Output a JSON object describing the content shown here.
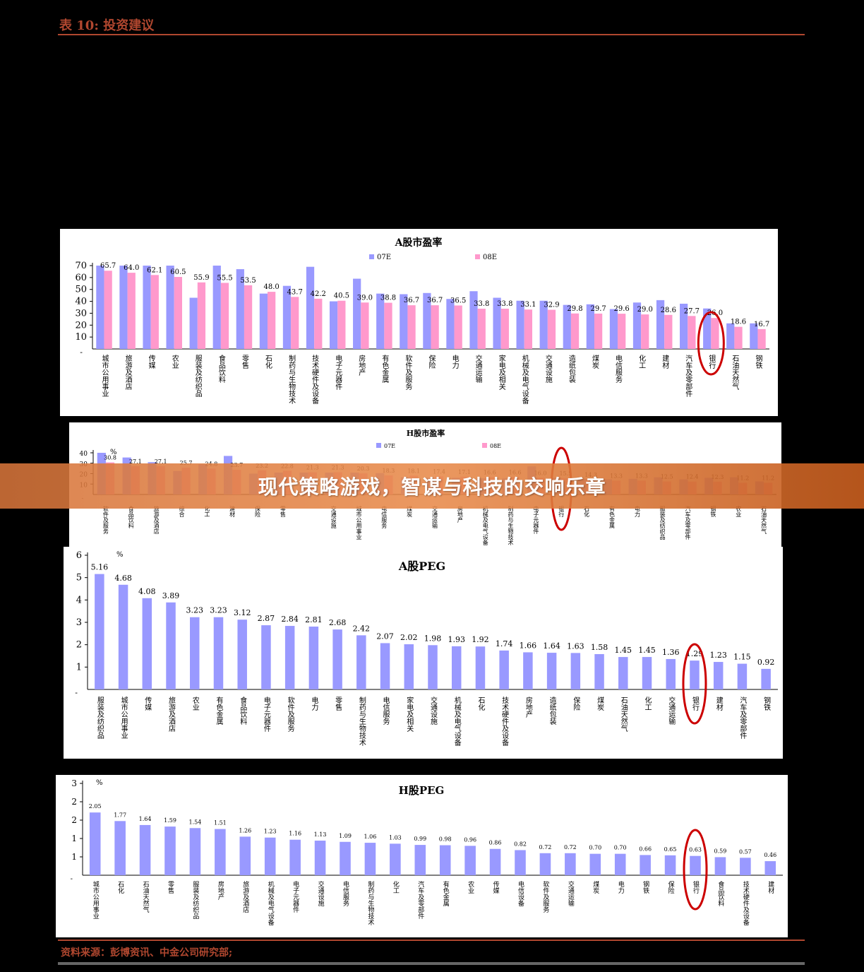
{
  "header": {
    "title": "表 10: 投资建议"
  },
  "footer": {
    "source": "资料来源：彭博资讯、中金公司研究部;"
  },
  "banner": {
    "title": "现代策略游戏，智谋与科技的交响乐章"
  },
  "colors": {
    "series_07E": "#9999ff",
    "series_08E": "#ff99cc",
    "peg_bar": "#9999ff",
    "highlight_circle": "#cc0000",
    "accent": "#b0472f"
  },
  "chart_data": [
    {
      "id": "a_pe",
      "type": "bar",
      "title": "A股市盈率",
      "legend": [
        "07E",
        "08E"
      ],
      "legend_position": "top-center",
      "ylim": [
        0,
        70
      ],
      "yticks": [
        "10",
        "20",
        "30",
        "40",
        "50",
        "60",
        "70"
      ],
      "highlight": "银行",
      "categories": [
        "城市公用事业",
        "旅游及酒店",
        "传媒",
        "农业",
        "服装及纺织品",
        "食品饮料",
        "零售",
        "石化",
        "制药与生物技术",
        "技术硬件及设备",
        "电子元器件",
        "房地产",
        "有色金属",
        "软件及服务",
        "保险",
        "电力",
        "交通运输",
        "家电及相关",
        "机械及电气设备",
        "交通设施",
        "造纸包装",
        "煤炭",
        "电信服务",
        "化工",
        "建材",
        "汽车及零部件",
        "银行",
        "石油天然气",
        "钢铁"
      ],
      "series": [
        {
          "name": "07E",
          "values": [
            70.5,
            70.5,
            70,
            70,
            43,
            71,
            67,
            46.5,
            53,
            69,
            40,
            59,
            46.5,
            46,
            47,
            42,
            48.5,
            43,
            40.5,
            40.5,
            37,
            37.5,
            33.5,
            39,
            41,
            38,
            34,
            21.5,
            21.5
          ]
        },
        {
          "name": "08E",
          "values": [
            65.7,
            64.0,
            62.1,
            60.5,
            55.9,
            55.5,
            53.5,
            48.0,
            43.7,
            42.2,
            40.5,
            39.0,
            38.8,
            36.7,
            36.7,
            36.5,
            33.8,
            33.8,
            33.1,
            32.9,
            29.8,
            29.7,
            29.6,
            29.0,
            28.6,
            27.7,
            26.0,
            18.6,
            16.7
          ]
        }
      ],
      "labels": [
        "65.7",
        "64.0",
        "62.1",
        "60.5",
        "55.9",
        "55.5",
        "53.5",
        "48.0",
        "43.7",
        "42.2",
        "40.5",
        "39.0",
        "38.8",
        "36.7",
        "36.7",
        "36.5",
        "33.8",
        "33.8",
        "33.1",
        "32.9",
        "29.8",
        "29.7",
        "29.6",
        "29.0",
        "28.6",
        "27.7",
        "26.0",
        "18.6",
        "16.7"
      ]
    },
    {
      "id": "h_pe",
      "type": "bar",
      "title": "H股市盈率",
      "unit": "%",
      "legend": [
        "07E",
        "08E"
      ],
      "legend_position": "top-center",
      "ylim": [
        0,
        40
      ],
      "yticks": [
        "10",
        "20",
        "30",
        "40"
      ],
      "highlight": "银行",
      "categories": [
        "软件及服务",
        "食品饮料",
        "旅游及酒店",
        "综合",
        "化工",
        "建材",
        "保险",
        "零售",
        "",
        "交通设施",
        "城市公用事业",
        "电信服务",
        "煤炭",
        "交通运输",
        "房地产",
        "机械及电气设备",
        "制药与生物技术",
        "电子元器件",
        "银行",
        "石化",
        "有色金属",
        "电力",
        "服装及纺织品",
        "汽车及零部件",
        "钢铁",
        "农业",
        "石油天然气"
      ],
      "series": [
        {
          "name": "07E",
          "values": [
            40.5,
            35.5,
            31,
            22.5,
            29,
            37,
            20,
            21,
            21,
            21,
            21,
            20.5,
            16.5,
            16,
            16,
            15.5,
            15.5,
            27,
            16,
            15,
            14.5,
            15,
            16.5,
            14.5,
            16,
            16.5,
            12.5
          ]
        },
        {
          "name": "08E",
          "values": [
            30.8,
            27.1,
            27.1,
            25.7,
            24.8,
            23.7,
            23.2,
            22.8,
            21.3,
            21.3,
            20.3,
            18.3,
            18.1,
            17.4,
            17.1,
            16.6,
            16.6,
            16.0,
            15.5,
            14.3,
            13.3,
            13.3,
            12.5,
            12.4,
            12.3,
            11.2,
            11.2
          ]
        }
      ],
      "labels": [
        "30.8",
        "27.1",
        "27.1",
        "25.7",
        "24.8",
        "23.7",
        "23.2",
        "22.8",
        "21.3",
        "21.3",
        "20.3",
        "18.3",
        "18.1",
        "17.4",
        "17.1",
        "16.6",
        "16.6",
        "16.0",
        "15.5",
        "14.3",
        "13.3",
        "13.3",
        "12.5",
        "12.4",
        "12.3",
        "11.2",
        "11.2"
      ]
    },
    {
      "id": "a_peg",
      "type": "bar",
      "title": "A股PEG",
      "unit": "%",
      "ylim": [
        0,
        6
      ],
      "yticks": [
        "1",
        "2",
        "3",
        "4",
        "5",
        "6"
      ],
      "highlight": "银行",
      "categories": [
        "服装及纺织品",
        "城市公用事业",
        "传媒",
        "旅游及酒店",
        "农业",
        "有色金属",
        "食品饮料",
        "电子元器件",
        "软件及服务",
        "电力",
        "零售",
        "制药与生物技术",
        "电信服务",
        "家电及相关",
        "交通设施",
        "机械及电气设备",
        "石化",
        "技术硬件及设备",
        "房地产",
        "造纸包装",
        "保险",
        "煤炭",
        "石油天然气",
        "化工",
        "交通运输",
        "银行",
        "建材",
        "汽车及零部件",
        "钢铁"
      ],
      "values": [
        5.16,
        4.68,
        4.08,
        3.89,
        3.23,
        3.23,
        3.12,
        2.87,
        2.84,
        2.81,
        2.68,
        2.42,
        2.07,
        2.02,
        1.98,
        1.93,
        1.92,
        1.74,
        1.66,
        1.64,
        1.63,
        1.58,
        1.45,
        1.45,
        1.36,
        1.29,
        1.23,
        1.15,
        0.92
      ],
      "labels": [
        "5.16",
        "4.68",
        "4.08",
        "3.89",
        "3.23",
        "3.23",
        "3.12",
        "2.87",
        "2.84",
        "2.81",
        "2.68",
        "2.42",
        "2.07",
        "2.02",
        "1.98",
        "1.93",
        "1.92",
        "1.74",
        "1.66",
        "1.64",
        "1.63",
        "1.58",
        "1.45",
        "1.45",
        "1.36",
        "1.29",
        "1.23",
        "1.15",
        "0.92"
      ]
    },
    {
      "id": "h_peg",
      "type": "bar",
      "title": "H股PEG",
      "unit": "%",
      "ylim": [
        0,
        3
      ],
      "yticks": [
        "1",
        "1",
        "2",
        "2",
        "3"
      ],
      "highlight": "银行",
      "categories": [
        "城市公用事业",
        "石化",
        "石油天然气",
        "零售",
        "服装及纺织品",
        "房地产",
        "旅游及酒店",
        "机械及电气设备",
        "电子元器件",
        "交通设施",
        "电信服务",
        "制药与生物技术",
        "化工",
        "汽车及零部件",
        "有色金属",
        "农业",
        "传媒",
        "电信设备",
        "软件及服务",
        "交通运输",
        "煤炭",
        "电力",
        "钢铁",
        "保险",
        "银行",
        "食品饮料",
        "技术硬件及设备",
        "建材"
      ],
      "values": [
        2.05,
        1.77,
        1.64,
        1.59,
        1.54,
        1.51,
        1.26,
        1.23,
        1.16,
        1.13,
        1.09,
        1.06,
        1.03,
        0.99,
        0.98,
        0.96,
        0.86,
        0.82,
        0.72,
        0.72,
        0.7,
        0.7,
        0.66,
        0.65,
        0.63,
        0.59,
        0.57,
        0.46
      ],
      "labels": [
        "2.05",
        "1.77",
        "1.64",
        "1.59",
        "1.54",
        "1.51",
        "1.26",
        "1.23",
        "1.16",
        "1.13",
        "1.09",
        "1.06",
        "1.03",
        "0.99",
        "0.98",
        "0.96",
        "0.86",
        "0.82",
        "0.72",
        "0.72",
        "0.70",
        "0.70",
        "0.66",
        "0.65",
        "0.63",
        "0.59",
        "0.57",
        "0.46"
      ]
    }
  ]
}
